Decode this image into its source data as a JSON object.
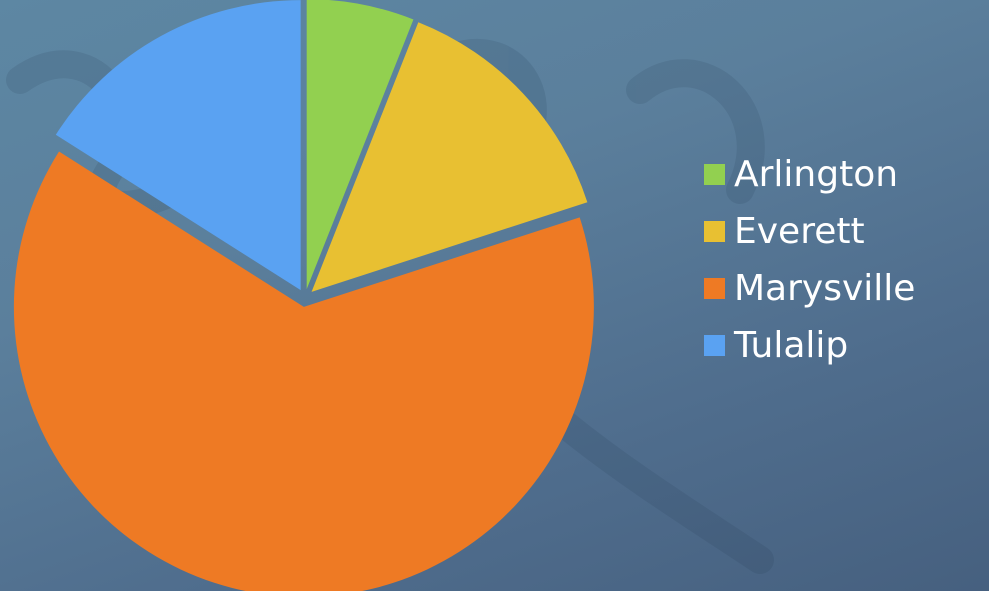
{
  "chart_data": {
    "type": "pie",
    "categories": [
      "Arlington",
      "Everett",
      "Marysville",
      "Tulalip"
    ],
    "values": [
      6,
      14,
      64,
      16
    ],
    "colors": [
      "#92d050",
      "#e8c032",
      "#ee7a24",
      "#5aa2f2"
    ],
    "legend_position": "right",
    "start_angle_deg": 0,
    "direction": "clockwise",
    "exploded": true
  }
}
